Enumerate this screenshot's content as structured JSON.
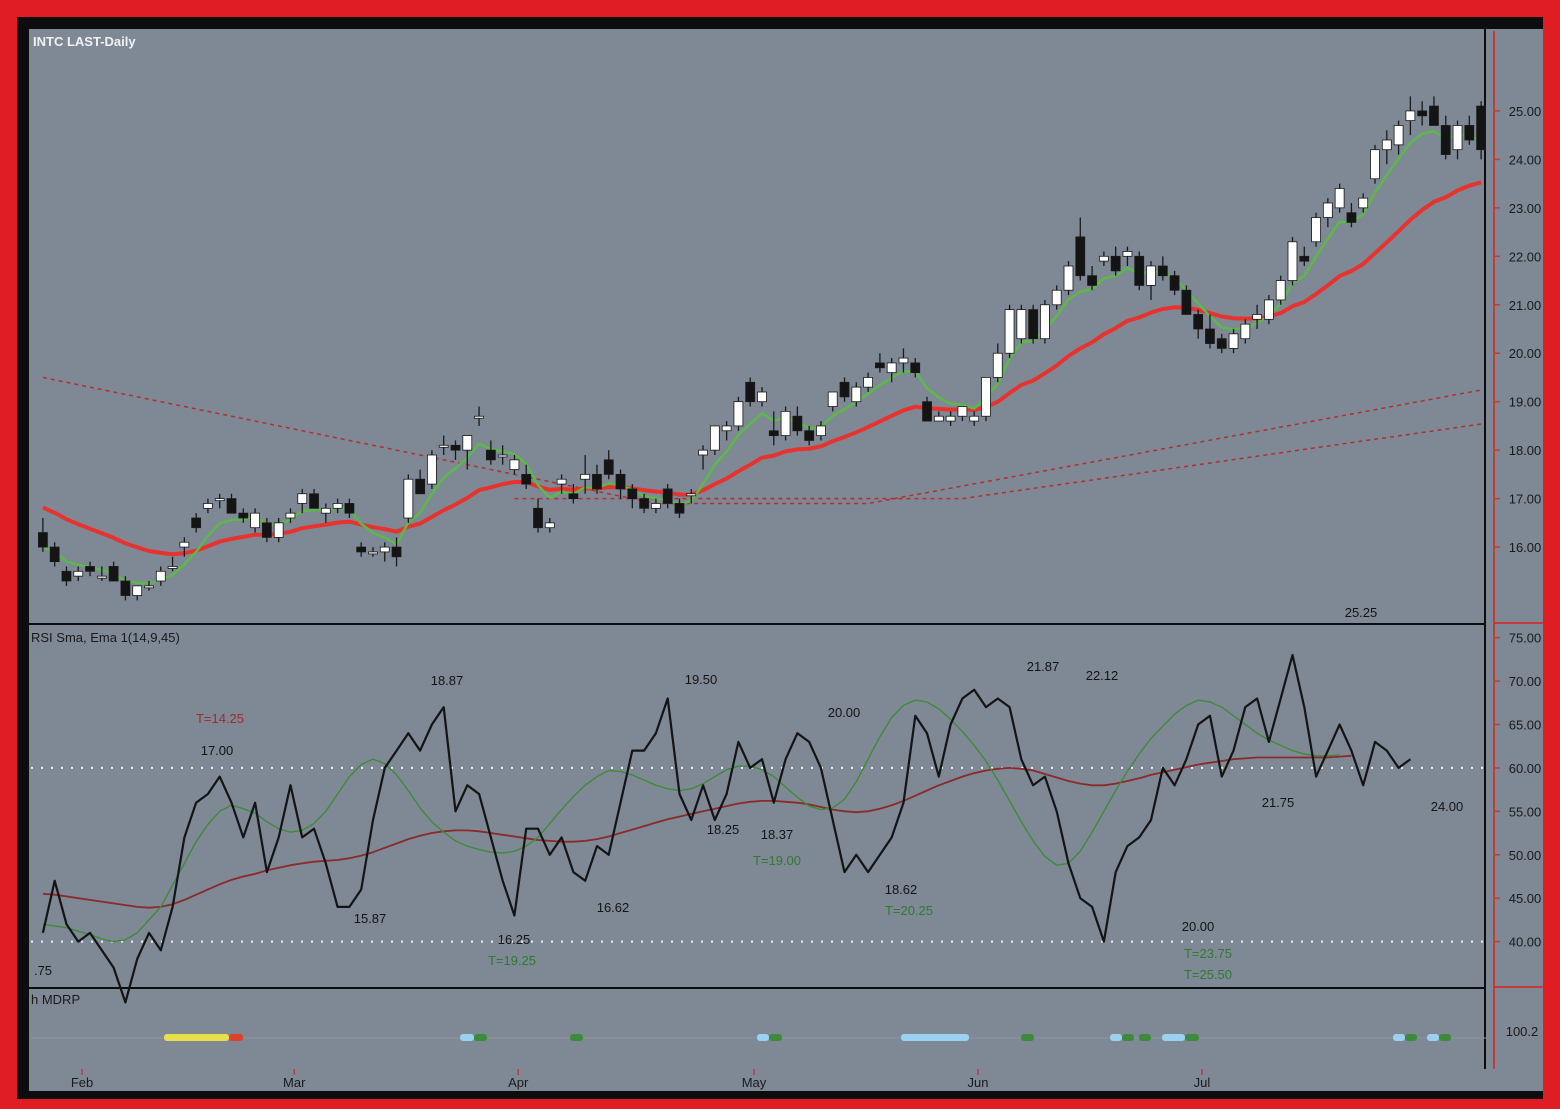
{
  "window": {
    "title": "INTC LAST-Daily"
  },
  "colors": {
    "frame": "#e01c24",
    "panel_bg": "#7f8895",
    "price_red_ma": "#e8322e",
    "price_green_ma": "#5db84a",
    "dotted_bands": "#b03030",
    "rsi_line": "#141414",
    "rsi_fast_ma": "#3f8a3a",
    "rsi_slow_ma": "#8a2a2a",
    "target_text": "#2f7a2f",
    "target_text_red": "#a12a2a",
    "candle_up": "#ffffff",
    "candle_down": "#141414",
    "axis_line": "#c43a3a"
  },
  "chart_data": [
    {
      "type": "candlestick",
      "title": "INTC LAST-Daily",
      "ylim": [
        15.3,
        25.7
      ],
      "y_ticks": [
        "25.00",
        "24.00",
        "23.00",
        "22.00",
        "21.00",
        "20.00",
        "19.00",
        "18.00",
        "17.00",
        "16.00"
      ],
      "x_tick_labels": [
        "Feb",
        "Mar",
        "Apr",
        "May",
        "Jun",
        "Jul"
      ],
      "x_tick_index": [
        4,
        22,
        41,
        61,
        80,
        99
      ],
      "bar_count": 123,
      "candles": [
        [
          16.3,
          16.6,
          15.9,
          16.0
        ],
        [
          16.0,
          16.1,
          15.6,
          15.7
        ],
        [
          15.5,
          15.6,
          15.2,
          15.3
        ],
        [
          15.4,
          15.6,
          15.3,
          15.5
        ],
        [
          15.6,
          15.7,
          15.4,
          15.5
        ],
        [
          15.4,
          15.6,
          15.3,
          15.4
        ],
        [
          15.6,
          15.7,
          15.3,
          15.3
        ],
        [
          15.3,
          15.4,
          14.9,
          15.0
        ],
        [
          15.0,
          15.2,
          14.9,
          15.2
        ],
        [
          15.2,
          15.3,
          15.1,
          15.2
        ],
        [
          15.3,
          15.6,
          15.2,
          15.5
        ],
        [
          15.6,
          15.8,
          15.5,
          15.6
        ],
        [
          16.0,
          16.2,
          15.8,
          16.1
        ],
        [
          16.6,
          16.7,
          16.3,
          16.4
        ],
        [
          16.8,
          17.0,
          16.7,
          16.9
        ],
        [
          17.0,
          17.1,
          16.8,
          17.0
        ],
        [
          17.0,
          17.1,
          16.7,
          16.7
        ],
        [
          16.7,
          16.8,
          16.5,
          16.6
        ],
        [
          16.4,
          16.8,
          16.3,
          16.7
        ],
        [
          16.5,
          16.6,
          16.1,
          16.2
        ],
        [
          16.2,
          16.6,
          16.1,
          16.5
        ],
        [
          16.6,
          16.8,
          16.5,
          16.7
        ],
        [
          16.9,
          17.2,
          16.7,
          17.1
        ],
        [
          17.1,
          17.2,
          16.8,
          16.8
        ],
        [
          16.7,
          16.9,
          16.5,
          16.8
        ],
        [
          16.8,
          17.0,
          16.7,
          16.9
        ],
        [
          16.9,
          17.0,
          16.6,
          16.7
        ],
        [
          16.0,
          16.1,
          15.8,
          15.9
        ],
        [
          15.9,
          16.0,
          15.8,
          15.9
        ],
        [
          15.9,
          16.1,
          15.7,
          16.0
        ],
        [
          16.0,
          16.2,
          15.6,
          15.8
        ],
        [
          16.6,
          17.5,
          16.5,
          17.4
        ],
        [
          17.4,
          17.6,
          17.1,
          17.1
        ],
        [
          17.3,
          18.0,
          17.2,
          17.9
        ],
        [
          18.1,
          18.3,
          17.9,
          18.1
        ],
        [
          18.1,
          18.2,
          17.8,
          18.0
        ],
        [
          18.0,
          18.3,
          17.6,
          18.3
        ],
        [
          18.7,
          18.9,
          18.5,
          18.7
        ],
        [
          18.0,
          18.2,
          17.7,
          17.8
        ],
        [
          17.9,
          18.1,
          17.7,
          17.9
        ],
        [
          17.6,
          17.9,
          17.5,
          17.8
        ],
        [
          17.5,
          17.7,
          17.2,
          17.3
        ],
        [
          16.8,
          17.0,
          16.3,
          16.4
        ],
        [
          16.4,
          16.6,
          16.3,
          16.5
        ],
        [
          17.3,
          17.5,
          17.1,
          17.4
        ],
        [
          17.1,
          17.3,
          16.9,
          17.0
        ],
        [
          17.4,
          17.9,
          17.1,
          17.5
        ],
        [
          17.5,
          17.7,
          17.1,
          17.2
        ],
        [
          17.8,
          18.0,
          17.4,
          17.5
        ],
        [
          17.5,
          17.6,
          17.0,
          17.2
        ],
        [
          17.2,
          17.3,
          16.8,
          17.0
        ],
        [
          17.0,
          17.1,
          16.7,
          16.8
        ],
        [
          16.8,
          17.0,
          16.7,
          16.9
        ],
        [
          17.2,
          17.3,
          16.8,
          16.9
        ],
        [
          16.9,
          17.0,
          16.6,
          16.7
        ],
        [
          17.1,
          17.2,
          16.9,
          17.1
        ],
        [
          17.9,
          18.1,
          17.6,
          18.0
        ],
        [
          18.0,
          18.5,
          17.9,
          18.5
        ],
        [
          18.4,
          18.6,
          18.2,
          18.5
        ],
        [
          18.5,
          19.1,
          18.4,
          19.0
        ],
        [
          19.4,
          19.5,
          18.9,
          19.0
        ],
        [
          19.0,
          19.3,
          18.9,
          19.2
        ],
        [
          18.4,
          18.8,
          18.1,
          18.3
        ],
        [
          18.3,
          18.9,
          18.2,
          18.8
        ],
        [
          18.7,
          18.9,
          18.3,
          18.4
        ],
        [
          18.4,
          18.5,
          18.1,
          18.2
        ],
        [
          18.3,
          18.6,
          18.2,
          18.5
        ],
        [
          18.9,
          19.2,
          18.8,
          19.2
        ],
        [
          19.4,
          19.5,
          19.0,
          19.1
        ],
        [
          19.0,
          19.4,
          18.9,
          19.3
        ],
        [
          19.3,
          19.6,
          19.2,
          19.5
        ],
        [
          19.8,
          20.0,
          19.6,
          19.7
        ],
        [
          19.6,
          19.9,
          19.4,
          19.8
        ],
        [
          19.8,
          20.1,
          19.6,
          19.9
        ],
        [
          19.8,
          19.9,
          19.5,
          19.6
        ],
        [
          19.0,
          19.1,
          18.6,
          18.6
        ],
        [
          18.6,
          18.8,
          18.6,
          18.7
        ],
        [
          18.6,
          18.8,
          18.5,
          18.7
        ],
        [
          18.7,
          18.9,
          18.6,
          18.9
        ],
        [
          18.6,
          18.8,
          18.5,
          18.7
        ],
        [
          18.7,
          19.5,
          18.6,
          19.5
        ],
        [
          19.5,
          20.2,
          19.4,
          20.0
        ],
        [
          20.0,
          21.0,
          19.9,
          20.9
        ],
        [
          20.3,
          21.0,
          20.2,
          20.9
        ],
        [
          20.9,
          21.0,
          20.2,
          20.3
        ],
        [
          20.3,
          21.1,
          20.2,
          21.0
        ],
        [
          21.0,
          21.4,
          20.9,
          21.3
        ],
        [
          21.3,
          21.9,
          21.2,
          21.8
        ],
        [
          22.4,
          22.8,
          21.5,
          21.6
        ],
        [
          21.6,
          21.8,
          21.3,
          21.4
        ],
        [
          21.9,
          22.1,
          21.8,
          22.0
        ],
        [
          22.0,
          22.2,
          21.6,
          21.7
        ],
        [
          22.0,
          22.2,
          21.8,
          22.1
        ],
        [
          22.0,
          22.1,
          21.3,
          21.4
        ],
        [
          21.4,
          21.9,
          21.1,
          21.8
        ],
        [
          21.8,
          22.0,
          21.5,
          21.6
        ],
        [
          21.6,
          21.7,
          21.2,
          21.3
        ],
        [
          21.3,
          21.4,
          20.8,
          20.8
        ],
        [
          20.8,
          20.9,
          20.3,
          20.5
        ],
        [
          20.5,
          20.8,
          20.1,
          20.2
        ],
        [
          20.3,
          20.4,
          20.0,
          20.1
        ],
        [
          20.1,
          20.5,
          20.0,
          20.4
        ],
        [
          20.3,
          20.7,
          20.2,
          20.6
        ],
        [
          20.7,
          21.0,
          20.5,
          20.8
        ],
        [
          20.7,
          21.2,
          20.6,
          21.1
        ],
        [
          21.1,
          21.6,
          21.0,
          21.5
        ],
        [
          21.5,
          22.4,
          21.4,
          22.3
        ],
        [
          22.0,
          22.2,
          21.8,
          21.9
        ],
        [
          22.3,
          22.9,
          22.2,
          22.8
        ],
        [
          22.8,
          23.2,
          22.6,
          23.1
        ],
        [
          23.0,
          23.5,
          22.9,
          23.4
        ],
        [
          22.9,
          23.1,
          22.6,
          22.7
        ],
        [
          23.0,
          23.3,
          22.9,
          23.2
        ],
        [
          23.6,
          24.3,
          23.5,
          24.2
        ],
        [
          24.2,
          24.6,
          23.9,
          24.4
        ],
        [
          24.3,
          24.8,
          24.1,
          24.7
        ],
        [
          24.8,
          25.3,
          24.5,
          25.0
        ],
        [
          25.0,
          25.2,
          24.7,
          24.9
        ],
        [
          25.1,
          25.3,
          24.7,
          24.7
        ],
        [
          24.7,
          24.9,
          24.0,
          24.1
        ],
        [
          24.2,
          24.8,
          24.0,
          24.7
        ],
        [
          24.7,
          24.9,
          24.3,
          24.4
        ],
        [
          25.1,
          25.2,
          24.0,
          24.2
        ]
      ]
    },
    {
      "type": "line",
      "title": "RSI Sma, Ema 1(14,9,45)",
      "ylim": [
        35,
        76
      ],
      "y_ticks": [
        "75.00",
        "70.00",
        "65.00",
        "60.00",
        "55.00",
        "50.00",
        "45.00",
        "40.00"
      ],
      "reference_lines": [
        60,
        40
      ],
      "series": [
        {
          "name": "RSI",
          "values": [
            41,
            47,
            42,
            40,
            41,
            39,
            37,
            33,
            38,
            41,
            39,
            44,
            52,
            56,
            57,
            59,
            56,
            52,
            56,
            48,
            52,
            58,
            52,
            53,
            49,
            44,
            44,
            46,
            54,
            60,
            62,
            64,
            62,
            65,
            67,
            55,
            58,
            57,
            52,
            47,
            43,
            53,
            53,
            50,
            52,
            48,
            47,
            51,
            50,
            56,
            62,
            62,
            64,
            68,
            57,
            54,
            58,
            54,
            57,
            63,
            60,
            61,
            56,
            61,
            64,
            63,
            60,
            54,
            48,
            50,
            48,
            50,
            52,
            56,
            66,
            64,
            59,
            65,
            68,
            69,
            67,
            68,
            67,
            61,
            58,
            59,
            55,
            49,
            45,
            44,
            40,
            48,
            51,
            52,
            54,
            60,
            58,
            61,
            65,
            66,
            59,
            62,
            67,
            68,
            63,
            68,
            73,
            67,
            59,
            62,
            65,
            62,
            58,
            63,
            62,
            60,
            61
          ]
        },
        {
          "name": "Sma",
          "values": [
            42,
            41.8,
            41.6,
            41.2,
            40.8,
            40.3,
            40,
            40.2,
            41,
            42.5,
            44,
            46.5,
            49,
            51.5,
            53.5,
            55,
            55.7,
            55.3,
            54.8,
            53.8,
            53,
            52.6,
            52.8,
            53.6,
            55,
            57,
            59,
            60.4,
            61,
            60.5,
            59.2,
            57.4,
            55.4,
            53.8,
            52.6,
            51.6,
            51,
            50.6,
            50.3,
            50.2,
            50.4,
            51,
            52,
            53.6,
            55.2,
            56.7,
            58,
            59,
            59.7,
            59.6,
            59.2,
            58.6,
            58,
            57.6,
            57.4,
            57.6,
            58.2,
            59,
            59.8,
            60.2,
            60.2,
            59.8,
            59,
            57.8,
            56.6,
            55.6,
            55.2,
            55.4,
            56.4,
            58.4,
            61,
            63.6,
            65.8,
            67.2,
            67.8,
            67.6,
            66.8,
            65.6,
            64.2,
            62.6,
            60.8,
            58.6,
            56.2,
            53.8,
            51.6,
            49.8,
            48.8,
            49,
            50.4,
            52.6,
            55,
            57.4,
            59.6,
            61.6,
            63.4,
            64.8,
            66.2,
            67.2,
            67.8,
            67.6,
            67,
            66,
            65,
            64,
            63.2,
            62.6,
            62,
            61.6,
            61.4,
            61.4,
            61.5
          ]
        },
        {
          "name": "Ema",
          "values": [
            45.5,
            45.4,
            45.2,
            45,
            44.8,
            44.6,
            44.4,
            44.2,
            44,
            43.9,
            44,
            44.3,
            44.8,
            45.4,
            46,
            46.6,
            47.1,
            47.5,
            47.8,
            48.2,
            48.5,
            48.8,
            49,
            49.2,
            49.3,
            49.4,
            49.6,
            49.9,
            50.3,
            50.8,
            51.3,
            51.8,
            52.2,
            52.5,
            52.7,
            52.8,
            52.8,
            52.7,
            52.5,
            52.3,
            52.1,
            51.9,
            51.7,
            51.6,
            51.5,
            51.5,
            51.6,
            51.8,
            52.1,
            52.5,
            52.9,
            53.3,
            53.7,
            54.1,
            54.4,
            54.7,
            55,
            55.3,
            55.6,
            55.9,
            56.1,
            56.2,
            56.2,
            56.1,
            56,
            55.8,
            55.5,
            55.2,
            55,
            54.9,
            55,
            55.3,
            55.7,
            56.2,
            56.8,
            57.4,
            58,
            58.5,
            59,
            59.4,
            59.7,
            59.9,
            60,
            59.9,
            59.7,
            59.3,
            58.9,
            58.5,
            58.2,
            58,
            58,
            58.2,
            58.5,
            58.8,
            59.2,
            59.5,
            59.8,
            60.1,
            60.4,
            60.6,
            60.8,
            61,
            61.1,
            61.2,
            61.2,
            61.2,
            61.2,
            61.2,
            61.2,
            61.2,
            61.3,
            61.4
          ]
        }
      ],
      "price_labels": [
        "17.00",
        "18.87",
        "19.50",
        "20.00",
        "21.87",
        "22.12",
        "25.25",
        "15.87",
        "16.25",
        "16.62",
        "18.25",
        "18.37",
        "18.62",
        "20.00",
        "21.75",
        "24.00",
        ".75"
      ],
      "target_labels": [
        "T=14.25",
        "T=19.25",
        "T=19.00",
        "T=20.25",
        "T=23.75",
        "T=25.50"
      ]
    },
    {
      "type": "bar",
      "title": "h MDRP",
      "y_ticks": [
        "100.2"
      ]
    }
  ]
}
